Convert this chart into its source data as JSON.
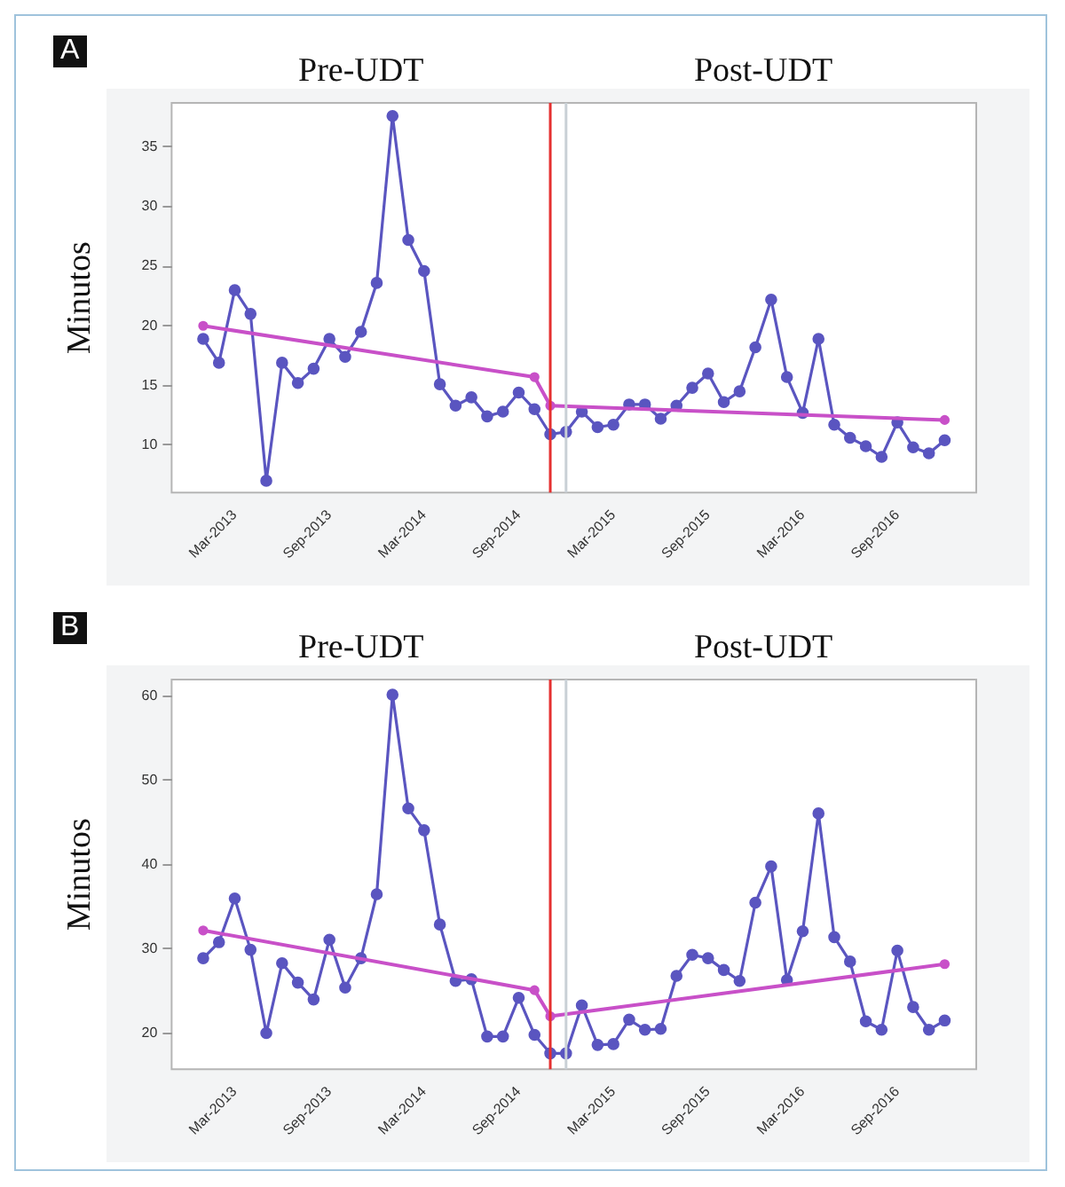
{
  "chart_data": [
    {
      "type": "line",
      "title": "A",
      "ylabel": "Minutos",
      "x": [
        "2013-01",
        "2013-02",
        "2013-03",
        "2013-04",
        "2013-05",
        "2013-06",
        "2013-07",
        "2013-08",
        "2013-09",
        "2013-10",
        "2013-11",
        "2013-12",
        "2014-01",
        "2014-02",
        "2014-03",
        "2014-04",
        "2014-05",
        "2014-06",
        "2014-07",
        "2014-08",
        "2014-09",
        "2014-10",
        "2014-11",
        "2014-12",
        "2015-01",
        "2015-02",
        "2015-03",
        "2015-04",
        "2015-05",
        "2015-06",
        "2015-07",
        "2015-08",
        "2015-09",
        "2015-10",
        "2015-11",
        "2015-12",
        "2016-01",
        "2016-02",
        "2016-03",
        "2016-04",
        "2016-05",
        "2016-06",
        "2016-07",
        "2016-08",
        "2016-09",
        "2016-10",
        "2016-11",
        "2016-12"
      ],
      "series": [
        {
          "color": "#5a55c0",
          "marker": "circle",
          "values": [
            18.9,
            16.9,
            23.0,
            21.0,
            7.0,
            16.9,
            15.2,
            16.4,
            18.9,
            17.4,
            19.5,
            23.6,
            37.6,
            27.2,
            24.6,
            15.1,
            13.3,
            14.0,
            12.4,
            12.8,
            14.4,
            13.0,
            10.9,
            11.1,
            12.8,
            11.5,
            11.7,
            13.4,
            13.4,
            12.2,
            13.3,
            14.8,
            16.0,
            13.6,
            14.5,
            18.2,
            22.2,
            15.7,
            12.7,
            18.9,
            11.7,
            10.6,
            9.9,
            9.0,
            11.9,
            9.8,
            9.3,
            10.4
          ]
        },
        {
          "color": "#c850c8",
          "marker": "circle",
          "x": [
            "2013-01",
            "2014-10",
            "2014-11",
            "2016-12"
          ],
          "values": [
            20.0,
            15.7,
            13.3,
            12.1
          ]
        }
      ],
      "xlim": [
        "2012-11",
        "2017-02"
      ],
      "ylim": [
        6,
        38.7
      ],
      "yticks": [
        10,
        15,
        20,
        25,
        30,
        35
      ],
      "xticks": [
        {
          "value": "2013-03",
          "label": "Mar-2013"
        },
        {
          "value": "2013-09",
          "label": "Sep-2013"
        },
        {
          "value": "2014-03",
          "label": "Mar-2014"
        },
        {
          "value": "2014-09",
          "label": "Sep-2014"
        },
        {
          "value": "2015-03",
          "label": "Mar-2015"
        },
        {
          "value": "2015-09",
          "label": "Sep-2015"
        },
        {
          "value": "2016-03",
          "label": "Mar-2016"
        },
        {
          "value": "2016-09",
          "label": "Sep-2016"
        }
      ],
      "ref_lines": [
        {
          "axis": "x",
          "value": "2014-11",
          "color": "#e53030"
        },
        {
          "axis": "x",
          "value": "2014-12",
          "color": "#c9d0d6"
        }
      ],
      "annotations": [
        "Pre-UDT",
        "Post-UDT"
      ],
      "grid": false,
      "legend": false
    },
    {
      "type": "line",
      "title": "B",
      "ylabel": "Minutos",
      "x": [
        "2013-01",
        "2013-02",
        "2013-03",
        "2013-04",
        "2013-05",
        "2013-06",
        "2013-07",
        "2013-08",
        "2013-09",
        "2013-10",
        "2013-11",
        "2013-12",
        "2014-01",
        "2014-02",
        "2014-03",
        "2014-04",
        "2014-05",
        "2014-06",
        "2014-07",
        "2014-08",
        "2014-09",
        "2014-10",
        "2014-11",
        "2014-12",
        "2015-01",
        "2015-02",
        "2015-03",
        "2015-04",
        "2015-05",
        "2015-06",
        "2015-07",
        "2015-08",
        "2015-09",
        "2015-10",
        "2015-11",
        "2015-12",
        "2016-01",
        "2016-02",
        "2016-03",
        "2016-04",
        "2016-05",
        "2016-06",
        "2016-07",
        "2016-08",
        "2016-09",
        "2016-10",
        "2016-11",
        "2016-12"
      ],
      "series": [
        {
          "color": "#5a55c0",
          "marker": "circle",
          "values": [
            28.9,
            30.8,
            36.0,
            29.9,
            20.0,
            28.3,
            26.0,
            24.0,
            31.1,
            25.4,
            28.9,
            36.5,
            60.2,
            46.7,
            44.1,
            32.9,
            26.2,
            26.4,
            19.6,
            19.6,
            24.2,
            19.8,
            17.6,
            17.6,
            23.3,
            18.6,
            18.7,
            21.6,
            20.4,
            20.5,
            26.8,
            29.3,
            28.9,
            27.5,
            26.2,
            35.5,
            39.8,
            26.3,
            32.1,
            46.1,
            31.4,
            28.5,
            21.4,
            20.4,
            29.8,
            23.1,
            20.4,
            21.5
          ]
        },
        {
          "color": "#c850c8",
          "marker": "circle",
          "x": [
            "2013-01",
            "2014-10",
            "2014-11",
            "2016-12"
          ],
          "values": [
            32.2,
            25.1,
            22.0,
            28.2
          ]
        }
      ],
      "xlim": [
        "2012-11",
        "2017-02"
      ],
      "ylim": [
        15.7,
        62
      ],
      "yticks": [
        20,
        30,
        40,
        50,
        60
      ],
      "xticks": [
        {
          "value": "2013-03",
          "label": "Mar-2013"
        },
        {
          "value": "2013-09",
          "label": "Sep-2013"
        },
        {
          "value": "2014-03",
          "label": "Mar-2014"
        },
        {
          "value": "2014-09",
          "label": "Sep-2014"
        },
        {
          "value": "2015-03",
          "label": "Mar-2015"
        },
        {
          "value": "2015-09",
          "label": "Sep-2015"
        },
        {
          "value": "2016-03",
          "label": "Mar-2016"
        },
        {
          "value": "2016-09",
          "label": "Sep-2016"
        }
      ],
      "ref_lines": [
        {
          "axis": "x",
          "value": "2014-11",
          "color": "#e53030"
        },
        {
          "axis": "x",
          "value": "2014-12",
          "color": "#c9d0d6"
        }
      ],
      "annotations": [
        "Pre-UDT",
        "Post-UDT"
      ],
      "grid": false,
      "legend": false
    }
  ]
}
